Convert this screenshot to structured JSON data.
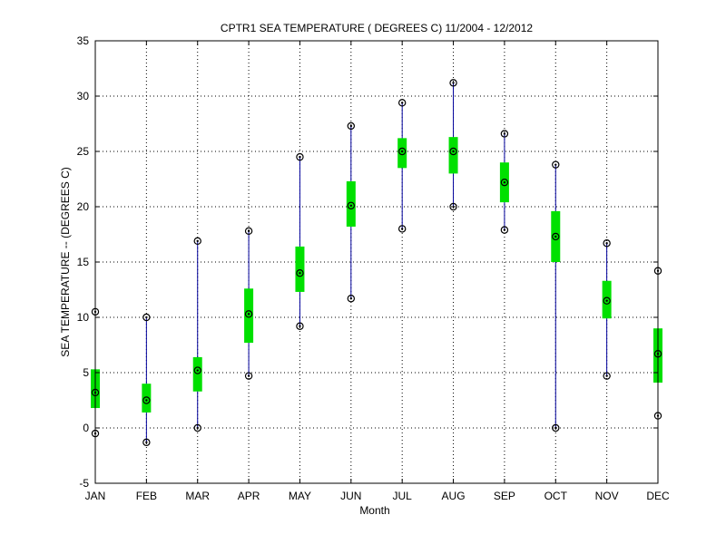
{
  "chart_data": {
    "type": "box",
    "title": "CPTR1  SEA TEMPERATURE ( DEGREES C) 11/2004 - 12/2012",
    "xlabel": "Month",
    "ylabel": "SEA TEMPERATURE -- (DEGREES C)",
    "ylim": [
      -5,
      35
    ],
    "yticks": [
      -5,
      0,
      5,
      10,
      15,
      20,
      25,
      30,
      35
    ],
    "grid": true,
    "categories": [
      "JAN",
      "FEB",
      "MAR",
      "APR",
      "MAY",
      "JUN",
      "JUL",
      "AUG",
      "SEP",
      "OCT",
      "NOV",
      "DEC"
    ],
    "max": [
      10.5,
      10.0,
      16.9,
      17.8,
      24.5,
      27.3,
      29.4,
      31.2,
      26.6,
      23.8,
      16.7,
      14.2
    ],
    "q3": [
      5.3,
      4.0,
      6.4,
      12.6,
      16.4,
      22.3,
      26.2,
      26.3,
      24.0,
      19.6,
      13.3,
      9.0
    ],
    "median": [
      3.2,
      2.5,
      5.2,
      10.3,
      14.0,
      20.1,
      25.0,
      25.0,
      22.2,
      17.3,
      11.5,
      6.7
    ],
    "q1": [
      1.8,
      1.4,
      3.3,
      7.7,
      12.3,
      18.2,
      23.5,
      23.0,
      20.4,
      15.0,
      9.9,
      4.1
    ],
    "min": [
      -0.5,
      -1.3,
      0.0,
      4.7,
      9.2,
      11.7,
      18.0,
      20.0,
      17.9,
      0.0,
      4.7,
      1.1
    ],
    "colors": {
      "whisker": "#00009c",
      "box": "#00e000",
      "marker": "#000000",
      "grid": "#000000",
      "axis": "#000000"
    }
  }
}
